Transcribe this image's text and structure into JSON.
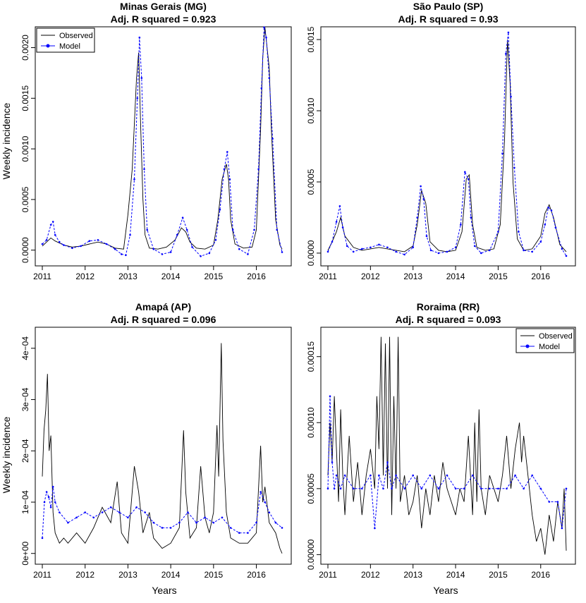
{
  "figure": {
    "x_label": "Years",
    "y_label": "Weekly incidence"
  },
  "colors": {
    "observed": "#000000",
    "model": "#0000ff"
  },
  "chart_data": [
    {
      "type": "line",
      "title": "Minas Gerais (MG)",
      "subtitle": "Adj. R squared = 0.923",
      "xlabel": "",
      "ylabel": "Weekly incidence",
      "xlim": [
        2011.0,
        2016.65
      ],
      "ylim": [
        -0.0001,
        0.00215
      ],
      "x_ticks": [
        "2011",
        "2012",
        "2013",
        "2014",
        "2015",
        "2016"
      ],
      "y_ticks": [
        "0.0000",
        "0.0005",
        "0.0010",
        "0.0015",
        "0.0020"
      ],
      "legend": {
        "position": "top-left",
        "entries": [
          "Observed",
          "Model"
        ]
      },
      "grid": false,
      "series": [
        {
          "name": "Observed",
          "x": [
            2011.0,
            2011.1,
            2011.2,
            2011.3,
            2011.5,
            2011.7,
            2011.9,
            2012.1,
            2012.3,
            2012.5,
            2012.7,
            2012.9,
            2013.0,
            2013.1,
            2013.2,
            2013.25,
            2013.3,
            2013.35,
            2013.4,
            2013.5,
            2013.7,
            2013.9,
            2014.1,
            2014.25,
            2014.35,
            2014.45,
            2014.6,
            2014.8,
            2015.0,
            2015.1,
            2015.2,
            2015.3,
            2015.35,
            2015.4,
            2015.5,
            2015.7,
            2015.9,
            2016.0,
            2016.1,
            2016.15,
            2016.2,
            2016.3,
            2016.35,
            2016.45,
            2016.55,
            2016.6
          ],
          "y": [
            4e-05,
            8e-05,
            0.00012,
            9e-05,
            5e-05,
            3e-05,
            4e-05,
            6e-05,
            8e-05,
            6e-05,
            2e-05,
            1e-05,
            0.00035,
            0.0008,
            0.0017,
            0.00195,
            0.0012,
            0.0005,
            0.00015,
            2e-05,
            1e-05,
            3e-05,
            0.0001,
            0.00022,
            0.00018,
            8e-05,
            2e-05,
            1e-05,
            5e-05,
            0.0003,
            0.0007,
            0.00085,
            0.0007,
            0.0003,
            6e-05,
            2e-05,
            3e-05,
            0.0002,
            0.0012,
            0.0019,
            0.0022,
            0.0018,
            0.0012,
            0.0003,
            5e-05,
            1e-05
          ]
        },
        {
          "name": "Model",
          "x": [
            2011.0,
            2011.1,
            2011.2,
            2011.25,
            2011.3,
            2011.4,
            2011.5,
            2011.7,
            2011.9,
            2012.1,
            2012.3,
            2012.5,
            2012.7,
            2012.85,
            2012.95,
            2013.05,
            2013.15,
            2013.22,
            2013.27,
            2013.32,
            2013.38,
            2013.45,
            2013.6,
            2013.8,
            2014.0,
            2014.15,
            2014.28,
            2014.38,
            2014.5,
            2014.7,
            2014.9,
            2015.05,
            2015.15,
            2015.25,
            2015.32,
            2015.38,
            2015.45,
            2015.6,
            2015.8,
            2015.95,
            2016.05,
            2016.12,
            2016.18,
            2016.23,
            2016.3,
            2016.38,
            2016.48,
            2016.6
          ],
          "y": [
            6e-05,
            0.0001,
            0.00025,
            0.00028,
            0.00015,
            8e-05,
            5e-05,
            2e-05,
            4e-05,
            9e-05,
            0.0001,
            6e-05,
            1e-05,
            -4e-05,
            -5e-05,
            0.00015,
            0.0007,
            0.0015,
            0.0021,
            0.0017,
            0.0008,
            0.0002,
            1e-05,
            -4e-05,
            -2e-05,
            0.00015,
            0.00032,
            0.0002,
            3e-05,
            -6e-05,
            -3e-05,
            0.0001,
            0.0004,
            0.0008,
            0.00097,
            0.0007,
            0.0002,
            1e-05,
            -4e-05,
            0.0002,
            0.0008,
            0.0016,
            0.0022,
            0.0021,
            0.0017,
            0.0011,
            0.0002,
            -2e-05
          ]
        }
      ]
    },
    {
      "type": "line",
      "title": "São Paulo (SP)",
      "subtitle": "Adj. R squared = 0.93",
      "xlabel": "",
      "ylabel": "",
      "xlim": [
        2011.0,
        2016.65
      ],
      "ylim": [
        -5e-05,
        0.00155
      ],
      "x_ticks": [
        "2011",
        "2012",
        "2013",
        "2014",
        "2015",
        "2016"
      ],
      "y_ticks": [
        "0.0000",
        "0.0005",
        "0.0010",
        "0.0015"
      ],
      "grid": false,
      "series": [
        {
          "name": "Observed",
          "x": [
            2011.0,
            2011.1,
            2011.2,
            2011.3,
            2011.4,
            2011.6,
            2011.8,
            2012.0,
            2012.2,
            2012.4,
            2012.6,
            2012.8,
            2013.0,
            2013.1,
            2013.2,
            2013.3,
            2013.4,
            2013.6,
            2013.8,
            2014.0,
            2014.15,
            2014.25,
            2014.32,
            2014.4,
            2014.5,
            2014.7,
            2014.9,
            2015.05,
            2015.15,
            2015.22,
            2015.28,
            2015.35,
            2015.45,
            2015.6,
            2015.8,
            2016.0,
            2016.1,
            2016.2,
            2016.3,
            2016.45,
            2016.6
          ],
          "y": [
            2e-05,
            8e-05,
            0.00015,
            0.00025,
            0.00012,
            4e-05,
            2e-05,
            3e-05,
            4e-05,
            3e-05,
            2e-05,
            1e-05,
            5e-05,
            0.0002,
            0.00044,
            0.00035,
            8e-05,
            2e-05,
            1e-05,
            2e-05,
            0.00015,
            0.00052,
            0.00055,
            0.0002,
            4e-05,
            2e-05,
            3e-05,
            0.0002,
            0.0008,
            0.0015,
            0.0012,
            0.0005,
            0.0001,
            2e-05,
            3e-05,
            0.00012,
            0.00028,
            0.00034,
            0.00025,
            6e-05,
            1e-05
          ]
        },
        {
          "name": "Model",
          "x": [
            2011.0,
            2011.1,
            2011.2,
            2011.28,
            2011.35,
            2011.45,
            2011.6,
            2011.8,
            2012.0,
            2012.2,
            2012.4,
            2012.6,
            2012.8,
            2013.0,
            2013.1,
            2013.18,
            2013.25,
            2013.32,
            2013.42,
            2013.6,
            2013.8,
            2014.0,
            2014.12,
            2014.22,
            2014.3,
            2014.36,
            2014.45,
            2014.6,
            2014.8,
            2015.0,
            2015.1,
            2015.18,
            2015.24,
            2015.3,
            2015.38,
            2015.48,
            2015.6,
            2015.8,
            2016.0,
            2016.1,
            2016.18,
            2016.25,
            2016.35,
            2016.5,
            2016.6
          ],
          "y": [
            1e-05,
            8e-05,
            0.00022,
            0.00033,
            0.00018,
            5e-05,
            1e-05,
            3e-05,
            4e-05,
            6e-05,
            4e-05,
            1e-05,
            -1e-05,
            4e-05,
            0.00025,
            0.00047,
            0.00038,
            0.00012,
            2e-05,
            0.0,
            1e-05,
            4e-05,
            0.0002,
            0.00057,
            0.00052,
            0.00025,
            5e-05,
            0.0,
            2e-05,
            0.00015,
            0.0007,
            0.0014,
            0.00155,
            0.0011,
            0.0006,
            0.00015,
            2e-05,
            1e-05,
            8e-05,
            0.0002,
            0.00032,
            0.0003,
            0.00018,
            3e-05,
            -2e-05
          ]
        }
      ]
    },
    {
      "type": "line",
      "title": "Amapá (AP)",
      "subtitle": "Adj. R squared = 0.096",
      "xlabel": "Years",
      "ylabel": "Weekly incidence",
      "xlim": [
        2011.0,
        2016.65
      ],
      "ylim": [
        -1e-05,
        0.00043
      ],
      "x_ticks": [
        "2011",
        "2012",
        "2013",
        "2014",
        "2015",
        "2016"
      ],
      "y_ticks": [
        "0e+00",
        "1e−04",
        "2e−04",
        "3e−04",
        "4e−04"
      ],
      "grid": false,
      "series": [
        {
          "name": "Observed",
          "x": [
            2011.0,
            2011.04,
            2011.08,
            2011.12,
            2011.16,
            2011.2,
            2011.25,
            2011.3,
            2011.4,
            2011.5,
            2011.6,
            2011.8,
            2012.0,
            2012.2,
            2012.4,
            2012.6,
            2012.75,
            2012.85,
            2013.0,
            2013.15,
            2013.25,
            2013.35,
            2013.5,
            2013.6,
            2013.8,
            2014.0,
            2014.2,
            2014.3,
            2014.35,
            2014.45,
            2014.6,
            2014.7,
            2014.8,
            2014.9,
            2015.0,
            2015.08,
            2015.12,
            2015.18,
            2015.22,
            2015.3,
            2015.4,
            2015.6,
            2015.8,
            2016.0,
            2016.1,
            2016.15,
            2016.2,
            2016.3,
            2016.45,
            2016.55,
            2016.6
          ],
          "y": [
            0.00015,
            0.00024,
            0.00028,
            0.00035,
            0.0002,
            0.00023,
            8e-05,
            4e-05,
            2e-05,
            3e-05,
            2e-05,
            4e-05,
            2e-05,
            5e-05,
            9e-05,
            6e-05,
            0.00014,
            4e-05,
            2e-05,
            0.00017,
            0.00012,
            4e-05,
            8e-05,
            3e-05,
            1e-05,
            2e-05,
            5e-05,
            0.00024,
            0.00012,
            3e-05,
            5e-05,
            0.00017,
            7e-05,
            4e-05,
            8e-05,
            0.00025,
            0.00015,
            0.00041,
            0.00022,
            8e-05,
            3e-05,
            2e-05,
            2e-05,
            4e-05,
            0.00021,
            0.0001,
            0.00013,
            6e-05,
            4e-05,
            1e-05,
            0.0
          ]
        },
        {
          "name": "Model",
          "x": [
            2011.0,
            2011.05,
            2011.1,
            2011.15,
            2011.2,
            2011.25,
            2011.3,
            2011.4,
            2011.6,
            2011.8,
            2012.0,
            2012.2,
            2012.4,
            2012.6,
            2012.8,
            2013.0,
            2013.2,
            2013.4,
            2013.6,
            2013.8,
            2014.0,
            2014.2,
            2014.4,
            2014.6,
            2014.8,
            2015.0,
            2015.2,
            2015.4,
            2015.6,
            2015.8,
            2016.0,
            2016.1,
            2016.2,
            2016.3,
            2016.45,
            2016.6
          ],
          "y": [
            3e-05,
            0.0001,
            0.00012,
            0.00011,
            9e-05,
            0.00013,
            0.0001,
            8e-05,
            6e-05,
            7e-05,
            8e-05,
            7e-05,
            8e-05,
            9e-05,
            8e-05,
            7e-05,
            9e-05,
            8e-05,
            6e-05,
            5e-05,
            5e-05,
            6e-05,
            8e-05,
            6e-05,
            7e-05,
            6e-05,
            7e-05,
            5e-05,
            4e-05,
            4e-05,
            6e-05,
            0.00012,
            0.0001,
            8e-05,
            6e-05,
            5e-05
          ]
        }
      ]
    },
    {
      "type": "line",
      "title": "Roraima (RR)",
      "subtitle": "Adj. R squared = 0.093",
      "xlabel": "Years",
      "ylabel": "",
      "xlim": [
        2011.0,
        2016.65
      ],
      "ylim": [
        -3e-06,
        0.000168
      ],
      "x_ticks": [
        "2011",
        "2012",
        "2013",
        "2014",
        "2015",
        "2016"
      ],
      "y_ticks": [
        "0.00000",
        "0.00005",
        "0.00010",
        "0.00015"
      ],
      "legend": {
        "position": "top-right",
        "entries": [
          "Observed",
          "Model"
        ]
      },
      "grid": false,
      "series": [
        {
          "name": "Observed",
          "x": [
            2011.0,
            2011.05,
            2011.1,
            2011.15,
            2011.2,
            2011.25,
            2011.3,
            2011.35,
            2011.4,
            2011.5,
            2011.6,
            2011.7,
            2011.8,
            2011.9,
            2012.0,
            2012.1,
            2012.15,
            2012.2,
            2012.25,
            2012.3,
            2012.35,
            2012.4,
            2012.45,
            2012.5,
            2012.55,
            2012.6,
            2012.65,
            2012.7,
            2012.8,
            2012.9,
            2013.0,
            2013.1,
            2013.2,
            2013.3,
            2013.4,
            2013.5,
            2013.6,
            2013.7,
            2013.8,
            2013.9,
            2014.0,
            2014.1,
            2014.2,
            2014.3,
            2014.4,
            2014.45,
            2014.5,
            2014.55,
            2014.6,
            2014.7,
            2014.8,
            2014.9,
            2015.0,
            2015.1,
            2015.2,
            2015.3,
            2015.4,
            2015.5,
            2015.55,
            2015.6,
            2015.7,
            2015.8,
            2015.9,
            2016.0,
            2016.1,
            2016.2,
            2016.3,
            2016.4,
            2016.5,
            2016.55,
            2016.6
          ],
          "y": [
            6e-05,
            0.0001,
            7e-05,
            0.00012,
            8e-05,
            4e-05,
            0.00011,
            6e-05,
            3e-05,
            9e-05,
            4e-05,
            7e-05,
            3e-05,
            6e-05,
            8e-05,
            5e-05,
            0.00012,
            8e-05,
            0.000165,
            6e-05,
            0.00016,
            5e-05,
            0.000165,
            3e-05,
            0.00012,
            5e-05,
            0.000165,
            4e-05,
            6e-05,
            3e-05,
            4e-05,
            6e-05,
            2e-05,
            5e-05,
            3e-05,
            6e-05,
            4e-05,
            7e-05,
            5e-05,
            4e-05,
            3e-05,
            5e-05,
            4e-05,
            9e-05,
            3e-05,
            0.0001,
            4e-05,
            0.00011,
            5e-05,
            3e-05,
            6e-05,
            5e-05,
            4e-05,
            6e-05,
            9e-05,
            5e-05,
            8e-05,
            0.0001,
            7e-05,
            9e-05,
            6e-05,
            3e-05,
            1e-05,
            2e-05,
            0.0,
            3e-05,
            1e-05,
            4e-05,
            2e-05,
            5e-05,
            3e-06
          ]
        },
        {
          "name": "Model",
          "x": [
            2011.0,
            2011.05,
            2011.1,
            2011.15,
            2011.2,
            2011.3,
            2011.4,
            2011.6,
            2011.8,
            2012.0,
            2012.1,
            2012.2,
            2012.3,
            2012.4,
            2012.5,
            2012.6,
            2012.8,
            2013.0,
            2013.2,
            2013.4,
            2013.6,
            2013.8,
            2014.0,
            2014.2,
            2014.4,
            2014.6,
            2014.8,
            2015.0,
            2015.2,
            2015.4,
            2015.6,
            2015.8,
            2016.0,
            2016.2,
            2016.4,
            2016.5,
            2016.6
          ],
          "y": [
            5e-05,
            0.00012,
            7e-05,
            5e-05,
            6e-05,
            5e-05,
            6e-05,
            5e-05,
            5e-05,
            6e-05,
            2e-05,
            6e-05,
            5e-05,
            7e-05,
            5e-05,
            6e-05,
            5e-05,
            6e-05,
            5e-05,
            6e-05,
            5e-05,
            6e-05,
            5e-05,
            5e-05,
            6e-05,
            5e-05,
            5e-05,
            5e-05,
            5e-05,
            6e-05,
            5e-05,
            6e-05,
            5e-05,
            4e-05,
            4e-05,
            2e-05,
            5e-05
          ]
        }
      ]
    }
  ]
}
